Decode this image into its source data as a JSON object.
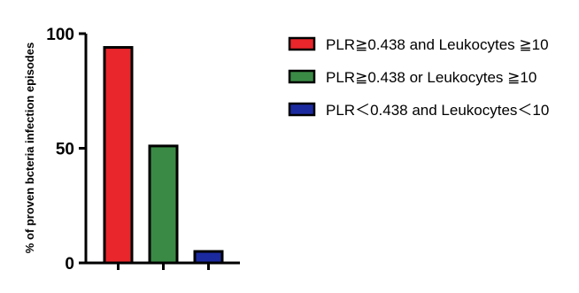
{
  "chart_data": {
    "type": "bar",
    "ylabel": "% of proven bcteria infection episodes",
    "ylim": [
      0,
      100
    ],
    "yticks": [
      0,
      50,
      100
    ],
    "grid": false,
    "legend_position": "right",
    "series": [
      {
        "name": "PLR≧0.438 and Leukocytes ≧10",
        "value": 94,
        "color": "#e8262b"
      },
      {
        "name": "PLR≧0.438 or Leukocytes ≧10",
        "value": 51,
        "color": "#3a8a45"
      },
      {
        "name": "PLR＜0.438 and Leukocytes＜10",
        "value": 5,
        "color": "#1c2aa0"
      }
    ]
  }
}
